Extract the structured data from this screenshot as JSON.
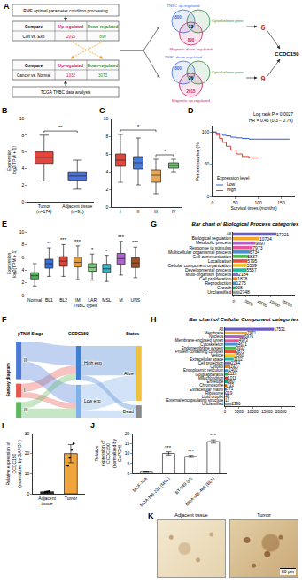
{
  "chart_data": [
    {
      "panel": "B",
      "type": "box",
      "y_label": "Expression\nlog2(TPM + 1)",
      "categories": [
        "Tumor\n(n=174)",
        "Adjacent tissue\n(n=91)"
      ],
      "colors": [
        "#e8453c",
        "#4a72d8"
      ],
      "stats": [
        {
          "whisker_low": 2.5,
          "q1": 4.6,
          "median": 5.3,
          "q3": 6.0,
          "whisker_high": 8.0
        },
        {
          "whisker_low": 1.5,
          "q1": 2.6,
          "median": 3.1,
          "q3": 3.6,
          "whisker_high": 5.0
        }
      ],
      "ylim": [
        0,
        10
      ],
      "yticks": [
        0,
        2,
        4,
        6,
        8,
        10
      ],
      "significance": [
        {
          "groups": [
            0,
            1
          ],
          "label": "**"
        }
      ]
    },
    {
      "panel": "C",
      "type": "box",
      "categories": [
        "I",
        "II",
        "III",
        "IV"
      ],
      "colors": [
        "#e0463c",
        "#4a7ad8",
        "#e8a85a",
        "#6bc46b"
      ],
      "stats": [
        {
          "whisker_low": 2.8,
          "q1": 4.6,
          "median": 5.3,
          "q3": 6.0,
          "whisker_high": 8.2
        },
        {
          "whisker_low": 2.5,
          "q1": 4.3,
          "median": 5.0,
          "q3": 5.7,
          "whisker_high": 7.8
        },
        {
          "whisker_low": 1.5,
          "q1": 2.8,
          "median": 3.6,
          "q3": 4.2,
          "whisker_high": 5.4
        },
        {
          "whisker_low": 4.0,
          "q1": 4.4,
          "median": 4.7,
          "q3": 5.0,
          "whisker_high": 5.4
        }
      ],
      "ylim": [
        0,
        10
      ],
      "yticks": [
        0,
        2,
        4,
        6,
        8,
        10
      ],
      "significance": [
        {
          "groups": [
            0,
            2
          ],
          "label": "*"
        },
        {
          "groups": [
            2,
            3
          ],
          "label": "*"
        }
      ]
    },
    {
      "panel": "D",
      "type": "line",
      "line_style": "step",
      "x_label": "Survival times (months)",
      "y_label": "Percent survival (%)",
      "legend_title": "Expression level",
      "legend": "bottom left",
      "series": [
        {
          "name": "Low",
          "color": "#2f5fd0",
          "x": [
            0,
            8,
            15,
            22,
            30,
            40,
            52,
            65,
            80,
            100,
            130,
            170
          ],
          "values": [
            100,
            98,
            97,
            95,
            94,
            92,
            91,
            90,
            89,
            89,
            89,
            89
          ]
        },
        {
          "name": "High",
          "color": "#e03a2f",
          "x": [
            0,
            8,
            15,
            22,
            30,
            40,
            52,
            65,
            80,
            100
          ],
          "values": [
            100,
            96,
            90,
            84,
            78,
            72,
            66,
            62,
            60,
            60
          ]
        }
      ],
      "xlim": [
        0,
        180
      ],
      "xticks": [
        0,
        50,
        100,
        150
      ],
      "ylim": [
        0,
        110
      ],
      "yticks": [
        0,
        50,
        100
      ],
      "annotations": [
        "Log rank P = 0.0027",
        "HR = 0.46 (0.3 − 0.79)"
      ]
    },
    {
      "panel": "E",
      "type": "box",
      "y_label": "Expression\nlog2(TPM + 1)",
      "x_label": "TNBC types",
      "categories": [
        "Normal",
        "BL1",
        "BL2",
        "IM",
        "LAR",
        "MSL",
        "M",
        "UNS"
      ],
      "colors": [
        "#55b05a",
        "#3a6fd6",
        "#e0453a",
        "#e89a3a",
        "#7fd07f",
        "#3ab0c0",
        "#b060d0",
        "#a0522d"
      ],
      "stats": [
        {
          "whisker_low": 1.5,
          "q1": 2.6,
          "median": 3.1,
          "q3": 3.6,
          "whisker_high": 5.0
        },
        {
          "whisker_low": 3.0,
          "q1": 4.3,
          "median": 5.0,
          "q3": 5.7,
          "whisker_high": 7.5
        },
        {
          "whisker_low": 3.0,
          "q1": 4.6,
          "median": 5.4,
          "q3": 6.1,
          "whisker_high": 8.0
        },
        {
          "whisker_low": 2.5,
          "q1": 4.5,
          "median": 5.2,
          "q3": 6.0,
          "whisker_high": 7.8
        },
        {
          "whisker_low": 2.4,
          "q1": 3.8,
          "median": 4.4,
          "q3": 5.0,
          "whisker_high": 6.5
        },
        {
          "whisker_low": 2.2,
          "q1": 3.6,
          "median": 4.2,
          "q3": 4.9,
          "whisker_high": 6.3
        },
        {
          "whisker_low": 3.2,
          "q1": 4.9,
          "median": 5.8,
          "q3": 6.6,
          "whisker_high": 8.5
        },
        {
          "whisker_low": 2.8,
          "q1": 4.4,
          "median": 5.1,
          "q3": 5.9,
          "whisker_high": 7.6
        }
      ],
      "ylim": [
        0,
        10
      ],
      "yticks": [
        0,
        2,
        4,
        6,
        8,
        10
      ],
      "stars": [
        null,
        "**",
        "***",
        "***",
        "*",
        "*",
        "***",
        "***"
      ]
    },
    {
      "panel": "F",
      "type": "sankey",
      "side_label": "Sankey diagram",
      "columns": [
        "pTNM Stage",
        "CCDC150",
        "Status"
      ],
      "nodes": [
        {
          "label": "I",
          "color": "#e8544a"
        },
        {
          "label": "II",
          "color": "#4a7bd6"
        },
        {
          "label": "III",
          "color": "#5cb85c"
        },
        {
          "label": "High exp",
          "color": "#3f7fd0"
        },
        {
          "label": "Low exp",
          "color": "#7fb0e8"
        },
        {
          "label": "Alive",
          "color": "#f0c040"
        },
        {
          "label": "Dead",
          "color": "#8a8a8a"
        }
      ],
      "links": [
        {
          "source": 0,
          "target": 3,
          "value": 20
        },
        {
          "source": 0,
          "target": 4,
          "value": 14
        },
        {
          "source": 1,
          "target": 3,
          "value": 48
        },
        {
          "source": 1,
          "target": 4,
          "value": 44
        },
        {
          "source": 2,
          "target": 3,
          "value": 16
        },
        {
          "source": 2,
          "target": 4,
          "value": 22
        },
        {
          "source": 3,
          "target": 5,
          "value": 72
        },
        {
          "source": 3,
          "target": 6,
          "value": 12
        },
        {
          "source": 4,
          "target": 5,
          "value": 62
        },
        {
          "source": 4,
          "target": 6,
          "value": 18
        }
      ]
    },
    {
      "panel": "G",
      "type": "bar",
      "orientation": "horizontal",
      "title": "Bar chart of Biological Process categories",
      "data_labels": true,
      "categories": [
        "All",
        "Biological regulation",
        "Metabolic process",
        "Response to stimulus",
        "Multicellular organismal process",
        "Cell communication",
        "Localization",
        "Cellular component organization",
        "Developmental process",
        "Multi-organism process",
        "Cell proliferation",
        "Reproduction",
        "Growth",
        "Unclassified"
      ],
      "values": [
        17531,
        10704,
        9097,
        7973,
        6734,
        5837,
        5795,
        5589,
        5557,
        2184,
        1878,
        1275,
        908,
        2748
      ],
      "colors": [
        "#6a5acd",
        "#f5a623",
        "#b45fc8",
        "#e8559a",
        "#4a90d9",
        "#50b848",
        "#e94e3c",
        "#f0c419",
        "#1abc9c",
        "#8e6bbf",
        "#e67e22",
        "#3498db",
        "#27ae60",
        "#95a5a6"
      ],
      "xlim": [
        0,
        25000
      ],
      "xticks": [
        0,
        5000,
        10000,
        15000,
        20000
      ]
    },
    {
      "panel": "H",
      "type": "bar",
      "orientation": "horizontal",
      "title": "Bar chart of Cellular Component categories",
      "data_labels": true,
      "categories": [
        "All",
        "Membrane",
        "Nucleus",
        "Membrane-enclosed lumen",
        "Cytoskeleton",
        "Endomembrane system",
        "Protein-containing complex",
        "Vesicle",
        "Extracellular space",
        "Cell projection",
        "Cytosol",
        "Endoplasmic reticulum",
        "Golgi apparatus",
        "Mitochondrion",
        "Envelope",
        "Chromosome",
        "Extracellular matrix",
        "Ribosome",
        "Lipid droplet",
        "External encapsulating structure",
        "Unclassified"
      ],
      "values": [
        17531,
        7971,
        6976,
        4973,
        4671,
        3932,
        3875,
        3560,
        3102,
        2244,
        1927,
        1402,
        1126,
        1011,
        980,
        733,
        571,
        219,
        45,
        12,
        2396
      ],
      "colors": [
        "#6a5acd",
        "#f5a623",
        "#b45fc8",
        "#e8559a",
        "#4a90d9",
        "#50b848",
        "#e94e3c",
        "#f0c419",
        "#1abc9c",
        "#8e6bbf",
        "#e67e22",
        "#3498db",
        "#27ae60",
        "#c0392b",
        "#16a085",
        "#d35400",
        "#2980b9",
        "#8e44ad",
        "#f39c12",
        "#2c3e50",
        "#95a5a6"
      ],
      "xlim": [
        0,
        25000
      ],
      "xticks": [
        0,
        5000,
        10000,
        15000,
        20000
      ]
    },
    {
      "panel": "I",
      "type": "bar",
      "y_label": "Relative expression of CCDC150\n(normalized by GAPDH)",
      "categories": [
        "Adjacent tissue",
        "Tumor"
      ],
      "values": [
        1,
        20
      ],
      "errors": [
        0.2,
        4.5
      ],
      "points": [
        [
          0.8,
          1.0,
          1.2
        ],
        [
          14,
          18,
          22,
          25
        ]
      ],
      "colors": [
        "#3c3c3c",
        "#f0a43c"
      ],
      "ylim": [
        0,
        30
      ],
      "yticks": [
        0,
        10,
        20,
        30
      ]
    },
    {
      "panel": "J",
      "type": "bar",
      "y_label": "Relative expression of CCDC150\n(normalized by GAPDH)",
      "categories": [
        "MCF-10A",
        "MDA-MB-231 (MSL)",
        "BT-549 (M)",
        "MDA-MB-468 (BL1)"
      ],
      "values": [
        1,
        10,
        8.5,
        16
      ],
      "errors": [
        0.1,
        0.8,
        0.5,
        0.8
      ],
      "colors": [
        "#ffffff",
        "#ffffff",
        "#ffffff",
        "#ffffff"
      ],
      "stars": [
        null,
        "***",
        "***",
        "***"
      ],
      "ylim": [
        0,
        20
      ],
      "yticks": [
        0,
        5,
        10,
        15,
        20
      ]
    }
  ],
  "flowchart": {
    "panel": "A",
    "source_box": "RMF optimal parameter condition processing",
    "tables": [
      {
        "header": [
          "Compare",
          "Up-regulated",
          "Down-regulated"
        ],
        "row": [
          "Con vs. Exp",
          2015,
          890
        ]
      },
      {
        "header": [
          "Compare",
          "Up-regulated",
          "Down-regulated"
        ],
        "row": [
          "Cancer vs. Normal",
          1332,
          3073
        ]
      }
    ],
    "tcga_box": "TCGA TNBC data analysis",
    "venns": [
      {
        "sets": [
          {
            "label": "TNBC up-regulated",
            "count": 800,
            "color": "#3b6fd8"
          },
          {
            "label": "Cytoskeleton gene",
            "color": "#2e8b3a"
          },
          {
            "label": "Magnetic down-regulated",
            "count": 890,
            "color": "#c81e6e"
          }
        ],
        "overlap": 13,
        "result": 6
      },
      {
        "sets": [
          {
            "label": "TNBC down-regulated",
            "count": 800,
            "color": "#3b6fd8"
          },
          {
            "label": "Cytoskeleton gene",
            "color": "#2e8b3a"
          },
          {
            "label": "Magnetic up-regulated",
            "count": 2015,
            "color": "#c81e6e"
          }
        ],
        "overlap": 26,
        "result": 9
      }
    ],
    "gene": "CCDC150"
  },
  "images": {
    "panel": "K",
    "items": [
      "Adjacent tissue",
      "Tumor"
    ],
    "scale_bar": "50 μm"
  }
}
